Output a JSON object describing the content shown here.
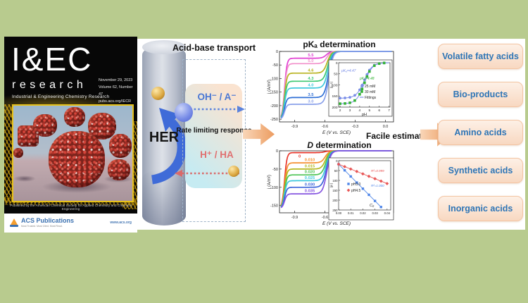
{
  "cover": {
    "journal_initials": "I&EC",
    "journal_name": "research",
    "journal_subtitle": "Industrial & Engineering Chemistry Research",
    "date": "November 29, 2023",
    "volume": "Volume 62, Number 47",
    "url": "pubs.acs.org/IECR",
    "footer": "Published by the American Chemical Society for Applied Chemistry and Chemical Engineering",
    "publisher": "ACS Publications",
    "publisher_tagline": "Most Trusted. Most Cited. Most Read.",
    "publisher_url": "www.acs.org"
  },
  "scheme": {
    "electrode_label": "HER",
    "transport_title": "Acid-base transport",
    "top_species": "OH⁻ / A⁻",
    "middle_label": "Rate limiting response",
    "bottom_species": "H⁺ / HA",
    "estimation_label": "Facile estimation"
  },
  "acids": [
    "Volatile fatty acids",
    "Bio-products",
    "Amino acids",
    "Synthetic acids",
    "Inorganic acids"
  ],
  "colors": {
    "background": "#b8cb8e",
    "acid_text": "#2e75b6",
    "oh_text": "#4a77d4",
    "hha_text": "#e07070",
    "arrow_orange": "#ec9c60",
    "her_arrow_blue": "#3f6bd8",
    "cover_gold": "#e8c21a"
  },
  "chart_data": [
    {
      "id": "pka_main",
      "type": "line",
      "title": "pKₐ determination",
      "xlabel": "E (V vs. SCE)",
      "ylabel": "j (A/m²)",
      "xlim": [
        -1.05,
        0.08
      ],
      "ylim": [
        -260,
        0
      ],
      "xticks": [
        -0.9,
        -0.6,
        -0.3,
        0
      ],
      "xtick_labels": [
        "-0.9",
        "-0.6",
        "-0.3",
        "0.0"
      ],
      "yticks": [
        0,
        -50,
        -100,
        -150,
        -200,
        -250
      ],
      "deep": -250,
      "series": [
        {
          "label": "5.5",
          "color": "#e23fd2",
          "plateau": -25
        },
        {
          "label": "5.0",
          "color": "#f291cb",
          "plateau": -45
        },
        {
          "label": "4.6",
          "color": "#b9b21e",
          "plateau": -80
        },
        {
          "label": "4.3",
          "color": "#3ec972",
          "plateau": -110
        },
        {
          "label": "4.0",
          "color": "#3fc8dc",
          "plateau": -135
        },
        {
          "label": "3.5",
          "color": "#2f6fd6",
          "plateau": -170
        },
        {
          "label": "3.0",
          "color": "#8aa0ea",
          "plateau": -195
        }
      ]
    },
    {
      "id": "pka_inset",
      "type": "scatter",
      "xlabel": "pH",
      "ylabel": "|j₀,L|",
      "xlim": [
        1.85,
        7.1
      ],
      "ylim_reversed": [
        0,
        200
      ],
      "xticks": [
        2,
        3,
        4,
        5,
        6,
        7
      ],
      "yticks": [
        0,
        50,
        100,
        150,
        200
      ],
      "fit_label": "Fittings",
      "fit_color": "#7b8fe8",
      "point_ph": [
        2,
        2.5,
        3,
        3.5,
        4,
        4.25,
        4.5,
        4.75,
        5,
        5.5,
        6,
        6.5
      ],
      "series": [
        {
          "label": "25 mM",
          "marker": "circle",
          "color": "#7b8fe8",
          "pKa": 4.47,
          "max": 160,
          "annotation": "pKₐ=4.47"
        },
        {
          "label": "30 mM",
          "marker": "square",
          "color": "#35b335",
          "pKa": 4.48,
          "max": 185,
          "annotation": "pKₐ=4.48"
        }
      ]
    },
    {
      "id": "d_main",
      "type": "line",
      "title": "D determination",
      "title_italic_first": true,
      "xlabel": "E (V vs. SCE)",
      "ylabel": "j (A/m²)",
      "xlim": [
        -1.05,
        0.08
      ],
      "ylim": [
        -170,
        0
      ],
      "xticks": [
        -0.9,
        -0.6,
        -0.3,
        0
      ],
      "xtick_labels": [
        "-0.9",
        "-0.6",
        "-0.3",
        "0.0"
      ],
      "yticks": [
        0,
        -50,
        -100,
        -150
      ],
      "deep": -158,
      "series": [
        {
          "label": "0",
          "color": "#e8372c",
          "plateau": -5,
          "lx": -0.85,
          "dy": 7
        },
        {
          "label": "0.010",
          "color": "#f59033",
          "plateau": -33
        },
        {
          "label": "0.015",
          "color": "#b5b81e",
          "plateau": -50
        },
        {
          "label": "0.020",
          "color": "#4cc455",
          "plateau": -66
        },
        {
          "label": "0.025",
          "color": "#3fc8dc",
          "plateau": -82
        },
        {
          "label": "0.030",
          "color": "#3b63d9",
          "plateau": -100
        },
        {
          "label": "0.035",
          "color": "#8655e0",
          "plateau": -118
        }
      ]
    },
    {
      "id": "d_inset",
      "type": "scatter",
      "xlabel": "C₀",
      "ylabel": "|jL|",
      "xlim": [
        0,
        0.043
      ],
      "ylim_reversed": [
        0,
        250
      ],
      "xticks": [
        0,
        0.01,
        0.02,
        0.03,
        0.04
      ],
      "xtick_labels": [
        "0.00",
        "0.01",
        "0.02",
        "0.03",
        "0.04"
      ],
      "yticks": [
        0,
        50,
        100,
        150,
        200,
        250
      ],
      "series": [
        {
          "label": "pH3.0",
          "marker": "square",
          "color": "#4f86e8",
          "intercept": 18,
          "slope": 6200,
          "xmax": 0.035,
          "r2": "R²=1.000"
        },
        {
          "label": "pH4.5",
          "marker": "diamond",
          "color": "#e85555",
          "intercept": 18,
          "slope": 2450,
          "xmax": 0.0405,
          "r2": "R²=0.999"
        }
      ]
    }
  ]
}
